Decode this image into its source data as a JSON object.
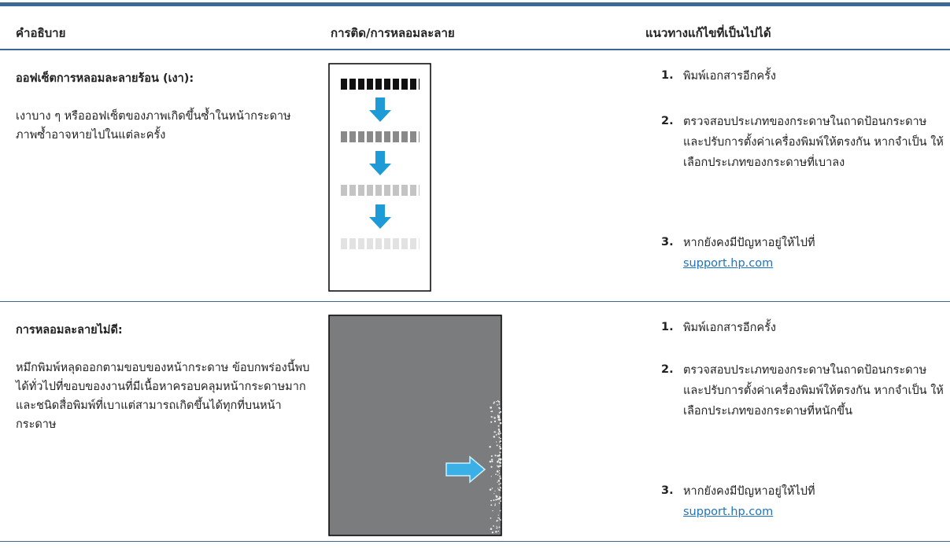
{
  "header": {
    "columns": [
      "คำอธิบาย",
      "การติด/การหลอมละลาย",
      "แนวทางแก้ไขที่เป็นไปได้"
    ]
  },
  "table": {
    "rows": [
      {
        "title": "ออฟเซ็ตการหลอมละลายร้อน (เงา):",
        "description": "เงาบาง ๆ หรือออฟเซ็ตของภาพเกิดขึ้นซ้ำในหน้ากระดาษ ภาพซ้ำอาจหายไปในแต่ละครั้ง",
        "steps": [
          {
            "number": "1.",
            "text": "พิมพ์เอกสารอีกครั้ง"
          },
          {
            "number": "2.",
            "text": "ตรวจสอบประเภทของกระดาษในถาดป้อนกระดาษและปรับการตั้งค่าเครื่องพิมพ์ให้ตรงกัน หากจำเป็น ให้เลือกประเภทของกระดาษที่เบาลง"
          },
          {
            "number": "3.",
            "text": "หากยังคงมีปัญหาอยู่ให้ไปที่",
            "link": "support.hp.com"
          }
        ]
      },
      {
        "title": "การหลอมละลายไม่ดี:",
        "description": "หมึกพิมพ์หลุดออกตามขอบของหน้ากระดาษ ข้อบกพร่องนี้พบได้ทั่วไปที่ขอบของงานที่มีเนื้อหาครอบคลุมหน้ากระดาษมากและชนิดสื่อพิมพ์ที่เบาแต่สามารถเกิดขึ้นได้ทุกที่บนหน้ากระดาษ",
        "steps": [
          {
            "number": "1.",
            "text": "พิมพ์เอกสารอีกครั้ง"
          },
          {
            "number": "2.",
            "text": "ตรวจสอบประเภทของกระดาษในถาดป้อนกระดาษและปรับการตั้งค่าเครื่องพิมพ์ให้ตรงกัน หากจำเป็น ให้เลือกประเภทของกระดาษที่หนักขึ้น"
          },
          {
            "number": "3.",
            "text": "หากยังคงมีปัญหาอยู่ให้ไปที่",
            "link": "support.hp.com"
          }
        ]
      }
    ]
  }
}
